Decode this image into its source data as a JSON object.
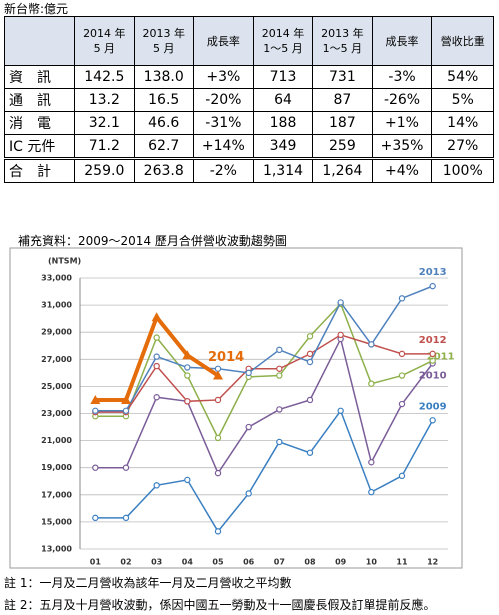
{
  "unit": "新台幣:億元",
  "table": {
    "header": [
      [
        "2014 年",
        "5 月"
      ],
      [
        "2013 年",
        "5 月"
      ],
      [
        "成長率"
      ],
      [
        "2014 年",
        "1～5 月"
      ],
      [
        "2013 年",
        "1～5 月"
      ],
      [
        "成長率"
      ],
      [
        "營收比重"
      ]
    ],
    "rows": [
      [
        "資　訊",
        "142.5",
        "138.0",
        "+3%",
        "713",
        "731",
        "-3%",
        "54%"
      ],
      [
        "通　訊",
        "13.2",
        "16.5",
        "-20%",
        "64",
        "87",
        "-26%",
        "5%"
      ],
      [
        "消　電",
        "32.1",
        "46.6",
        "-31%",
        "188",
        "187",
        "+1%",
        "14%"
      ],
      [
        "IC 元件",
        "71.2",
        "62.7",
        "+14%",
        "349",
        "259",
        "+35%",
        "27%"
      ],
      [
        "合　計",
        "259.0",
        "263.8",
        "-2%",
        "1,314",
        "1,264",
        "+4%",
        "100%"
      ]
    ]
  },
  "chart_caption": "補充資料：2009～2014 歷月合併營收波動趨勢圖",
  "chart_data": {
    "type": "line",
    "ylabel": "(NTSM)",
    "categories": [
      "01",
      "02",
      "03",
      "04",
      "05",
      "06",
      "07",
      "08",
      "09",
      "10",
      "11",
      "12"
    ],
    "ylim": [
      13000,
      33000
    ],
    "yticks": [
      {
        "value": 13000,
        "label": "13,000"
      },
      {
        "value": 15000,
        "label": "15,000"
      },
      {
        "value": 17000,
        "label": "17,000"
      },
      {
        "value": 19000,
        "label": "19,000"
      },
      {
        "value": 21000,
        "label": "21,000"
      },
      {
        "value": 23000,
        "label": "23,000"
      },
      {
        "value": 25000,
        "label": "25,000"
      },
      {
        "value": 27000,
        "label": "27,000"
      },
      {
        "value": 29000,
        "label": "29,000"
      },
      {
        "value": 31000,
        "label": "31,000"
      },
      {
        "value": 33000,
        "label": "33,000"
      }
    ],
    "grid": true,
    "series": [
      {
        "name": "2009",
        "color": "#3a7fc1",
        "values": [
          15300,
          15300,
          17700,
          18100,
          14300,
          17100,
          20900,
          20100,
          23200,
          17200,
          18400,
          22500
        ]
      },
      {
        "name": "2010",
        "color": "#7a5c99",
        "values": [
          19000,
          19000,
          24200,
          23900,
          18600,
          22000,
          23300,
          24000,
          28500,
          19400,
          23700,
          26700
        ]
      },
      {
        "name": "2011",
        "color": "#8db04a",
        "values": [
          22800,
          22800,
          28600,
          25800,
          21200,
          25700,
          25800,
          28700,
          31100,
          25200,
          25800,
          26900
        ]
      },
      {
        "name": "2012",
        "color": "#c0504d",
        "values": [
          23100,
          23100,
          26500,
          23900,
          24000,
          26300,
          26300,
          27400,
          28800,
          28100,
          27400,
          27400
        ]
      },
      {
        "name": "2013",
        "color": "#4f81bd",
        "values": [
          23200,
          23200,
          27200,
          26400,
          26300,
          26000,
          27700,
          26800,
          31200,
          28100,
          31500,
          32400
        ]
      },
      {
        "name": "2014",
        "color": "#e46c0a",
        "marker": "triangle",
        "values": [
          24000,
          24000,
          30100,
          27300,
          25800,
          null,
          null,
          null,
          null,
          null,
          null,
          null
        ]
      }
    ]
  },
  "notes": [
    "註 1：一月及二月營收為該年一月及二月營收之平均數",
    "註 2：五月及十月營收波動，係因中國五一勞動及十一國慶長假及訂單提前反應。"
  ]
}
